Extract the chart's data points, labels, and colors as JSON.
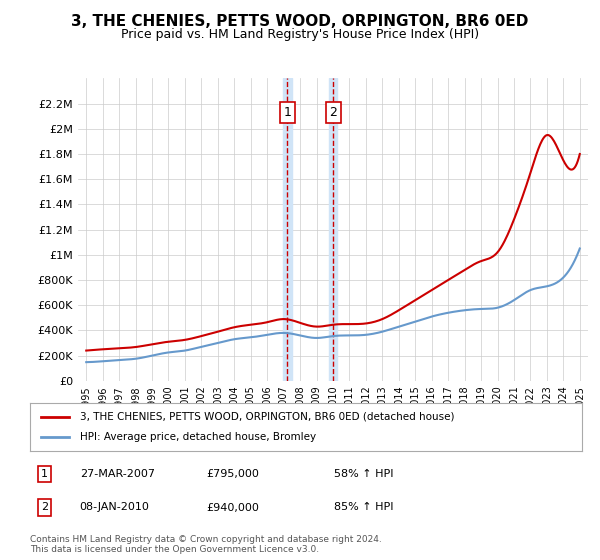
{
  "title": "3, THE CHENIES, PETTS WOOD, ORPINGTON, BR6 0ED",
  "subtitle": "Price paid vs. HM Land Registry's House Price Index (HPI)",
  "legend_line1": "3, THE CHENIES, PETTS WOOD, ORPINGTON, BR6 0ED (detached house)",
  "legend_line2": "HPI: Average price, detached house, Bromley",
  "table": [
    {
      "num": "1",
      "date": "27-MAR-2007",
      "price": "£795,000",
      "hpi": "58% ↑ HPI"
    },
    {
      "num": "2",
      "date": "08-JAN-2010",
      "price": "£940,000",
      "hpi": "85% ↑ HPI"
    }
  ],
  "footer": "Contains HM Land Registry data © Crown copyright and database right 2024.\nThis data is licensed under the Open Government Licence v3.0.",
  "sale1_year": 2007.23,
  "sale2_year": 2010.02,
  "red_color": "#cc0000",
  "blue_color": "#6699cc",
  "highlight_color": "#d0e4f7",
  "grid_color": "#cccccc",
  "background_color": "#ffffff",
  "ylim": [
    0,
    2400000
  ],
  "xlim": [
    1994.5,
    2025.5
  ]
}
